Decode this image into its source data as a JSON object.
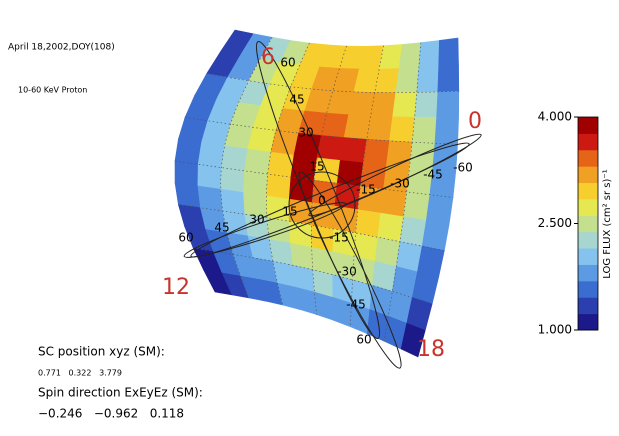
{
  "chart_data": {
    "type": "heatmap",
    "title": "April 18,2002,DOY(108)",
    "subtitle": "10-60 KeV Proton",
    "colorbar_label": "LOG FLUX (cm² sr s)⁻¹",
    "clim": [
      1,
      4
    ],
    "cticks": [
      {
        "value": 1,
        "label": "1.000"
      },
      {
        "value": 2.5,
        "label": "2.500"
      },
      {
        "value": 4,
        "label": "4.000"
      }
    ],
    "colorscale": [
      "#1c1a8a",
      "#2b3fae",
      "#3b6ccf",
      "#5c9be4",
      "#86c2ee",
      "#a6d6cf",
      "#c4e08e",
      "#e6e852",
      "#f6cf2e",
      "#f0a022",
      "#e66418",
      "#cc1a12",
      "#a00000"
    ],
    "values": [
      [
        1.3,
        1.8,
        2.3,
        2.6,
        2.9,
        3.0,
        3.0,
        2.9,
        2.7,
        2.4,
        2.0,
        1.5
      ],
      [
        1.4,
        1.9,
        2.4,
        2.7,
        3.0,
        3.1,
        3.2,
        3.0,
        2.9,
        2.6,
        2.1,
        1.6
      ],
      [
        1.5,
        2.0,
        2.3,
        2.8,
        3.0,
        3.2,
        3.3,
        3.2,
        3.1,
        2.8,
        2.3,
        1.7
      ],
      [
        1.5,
        2.0,
        2.4,
        2.8,
        3.1,
        3.4,
        3.5,
        3.3,
        3.3,
        3.0,
        2.5,
        1.8
      ],
      [
        1.6,
        2.1,
        2.4,
        2.7,
        3.1,
        3.8,
        3.6,
        3.7,
        3.4,
        3.2,
        2.6,
        1.9
      ],
      [
        1.6,
        2.0,
        2.3,
        2.6,
        3.0,
        3.9,
        3.0,
        3.9,
        3.5,
        3.2,
        2.6,
        1.9
      ],
      [
        1.5,
        2.0,
        2.2,
        2.5,
        2.9,
        3.8,
        3.4,
        3.6,
        3.3,
        3.1,
        2.5,
        1.8
      ],
      [
        1.5,
        1.9,
        2.1,
        2.4,
        2.8,
        3.1,
        3.2,
        3.1,
        3.0,
        2.8,
        2.3,
        1.7
      ],
      [
        1.4,
        1.8,
        2.0,
        2.3,
        2.5,
        2.8,
        2.9,
        2.8,
        2.7,
        2.5,
        2.1,
        1.6
      ],
      [
        1.3,
        1.6,
        1.9,
        2.1,
        2.3,
        2.5,
        2.6,
        2.5,
        2.4,
        2.2,
        1.9,
        1.5
      ],
      [
        1.2,
        1.5,
        1.7,
        1.9,
        2.0,
        2.1,
        2.2,
        2.1,
        2.0,
        1.9,
        1.7,
        1.4
      ],
      [
        1.1,
        1.3,
        1.5,
        1.6,
        1.7,
        1.8,
        1.8,
        1.8,
        1.7,
        1.6,
        1.5,
        1.2
      ]
    ],
    "local_times": [
      "6",
      "0",
      "12",
      "18"
    ],
    "latitudes": [
      "60",
      "45",
      "30",
      "15",
      "0",
      "-15",
      "-30",
      "-45",
      "60",
      "-60",
      "-45",
      "-30",
      "-15",
      "15",
      "30",
      "45",
      "60"
    ],
    "sc_position_label": "SC position xyz (SM):",
    "sc_position": "0.771   0.322   3.779",
    "spin_label": "Spin direction ExEyEz (SM):",
    "spin": "−0.246   −0.962   0.118"
  }
}
